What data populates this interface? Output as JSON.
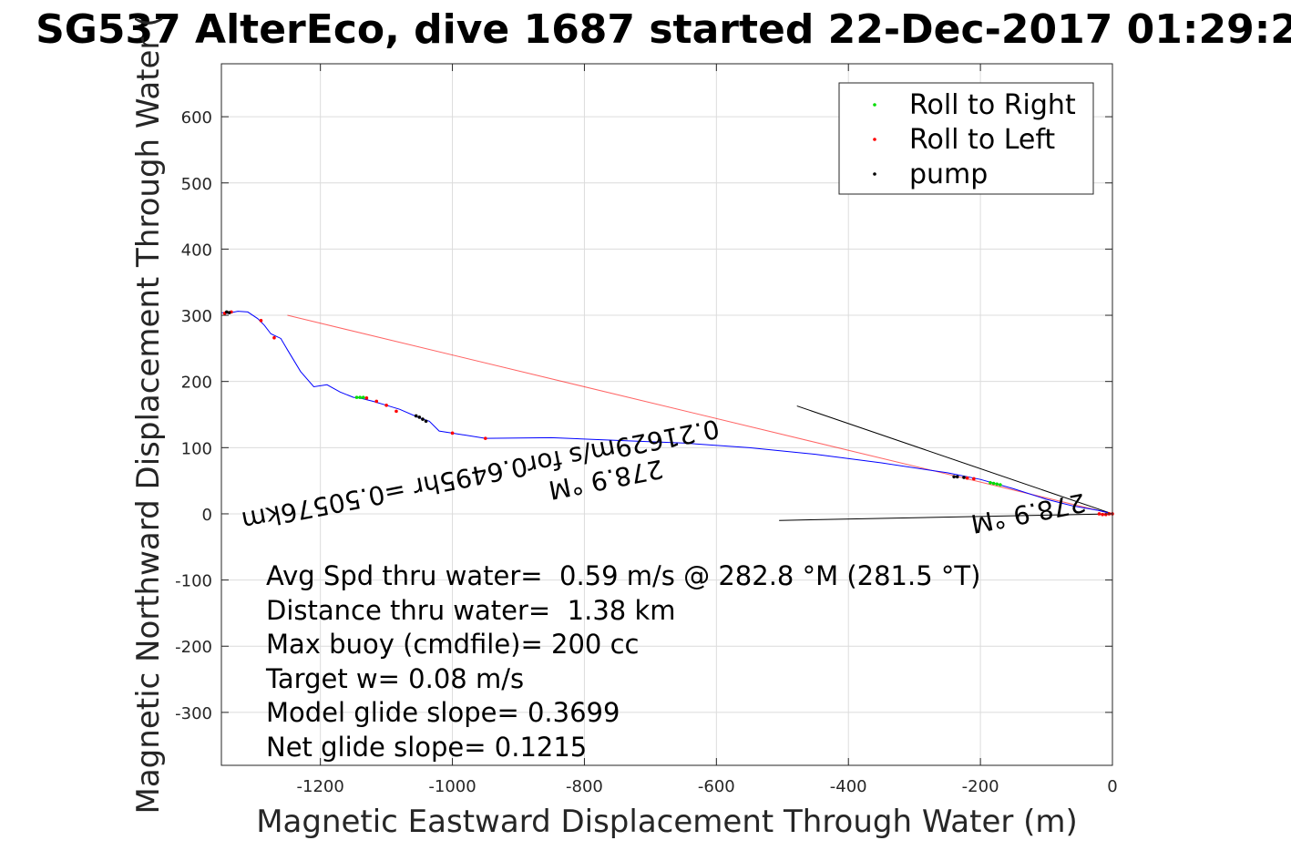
{
  "chart_data": {
    "type": "line",
    "title": "SG537 AlterEco, dive 1687 started 22-Dec-2017 01:29:2",
    "xlabel": "Magnetic Eastward Displacement Through Water (m)",
    "ylabel": "Magnetic Northward Displacement Through Water (",
    "xlim": [
      -1350,
      0
    ],
    "ylim": [
      -380,
      680
    ],
    "xticks": [
      -1200,
      -1000,
      -800,
      -600,
      -400,
      -200,
      0
    ],
    "yticks": [
      600,
      500,
      400,
      300,
      200,
      100,
      0,
      -100,
      -200,
      -300
    ],
    "grid": true,
    "legend_position": "top-right",
    "legend": [
      {
        "label": "Roll to Right",
        "color": "#00dd00"
      },
      {
        "label": "Roll to Left",
        "color": "#ff0000"
      },
      {
        "label": "pump",
        "color": "#000000"
      }
    ],
    "track": {
      "color": "#0000ff",
      "x": [
        0,
        -20,
        -60,
        -100,
        -150,
        -200,
        -250,
        -350,
        -450,
        -550,
        -650,
        -750,
        -850,
        -950,
        -1000,
        -1020,
        -1035,
        -1050,
        -1080,
        -1100,
        -1120,
        -1140,
        -1150,
        -1170,
        -1190,
        -1210,
        -1230,
        -1250,
        -1260,
        -1275,
        -1285,
        -1295,
        -1310,
        -1325,
        -1340,
        -1350
      ],
      "y": [
        0,
        5,
        12,
        22,
        38,
        52,
        62,
        77,
        90,
        100,
        107,
        111,
        115,
        114,
        122,
        125,
        140,
        145,
        158,
        164,
        170,
        175,
        176,
        184,
        195,
        192,
        215,
        248,
        265,
        272,
        285,
        295,
        305,
        306,
        303,
        304
      ]
    },
    "roll_right": {
      "color": "#00dd00",
      "x": [
        -170,
        -175,
        -180,
        -185,
        -1135,
        -1140,
        -1145
      ],
      "y": [
        44,
        45,
        46,
        47,
        176,
        176,
        176
      ]
    },
    "roll_left": {
      "color": "#ff0000",
      "x": [
        0,
        -5,
        -10,
        -15,
        -20,
        -210,
        -220,
        -1000,
        -950,
        -1085,
        -1100,
        -1115,
        -1130,
        -1270,
        -1290,
        -1335,
        -1345
      ],
      "y": [
        0,
        0,
        -1,
        -1,
        0,
        53,
        54,
        122,
        114,
        155,
        164,
        170,
        175,
        266,
        292,
        305,
        303
      ]
    },
    "pump": {
      "color": "#000000",
      "x": [
        -1040,
        -1045,
        -1050,
        -1055,
        -225,
        -235,
        -240,
        -1338,
        -1342
      ],
      "y": [
        140,
        143,
        146,
        148,
        55,
        56,
        56,
        304,
        305
      ]
    },
    "guide_lines": [
      {
        "x": [
          0,
          -478
        ],
        "y": [
          0,
          163
        ]
      },
      {
        "x": [
          0,
          -505
        ],
        "y": [
          0,
          -10
        ]
      }
    ],
    "current_arrow": {
      "x": [
        0,
        -1250
      ],
      "y": [
        0,
        300
      ]
    },
    "rotated_labels": [
      {
        "text": "0.21629m/s for0.6495hr =0.50576km",
        "x": -960,
        "y": 72
      },
      {
        "text": "278.9 °M",
        "x": -770,
        "y": 65
      },
      {
        "text": "278.9 °M",
        "x": -130,
        "y": 14
      }
    ],
    "annotations": [
      "Avg Spd thru water=  0.59 m/s @ 282.8 °M (281.5 °T)",
      "Distance thru water=  1.38 km",
      "Max buoy (cmdfile)= 200 cc",
      "Target w= 0.08 m/s",
      "Model glide slope= 0.3699",
      "Net glide slope= 0.1215"
    ]
  }
}
